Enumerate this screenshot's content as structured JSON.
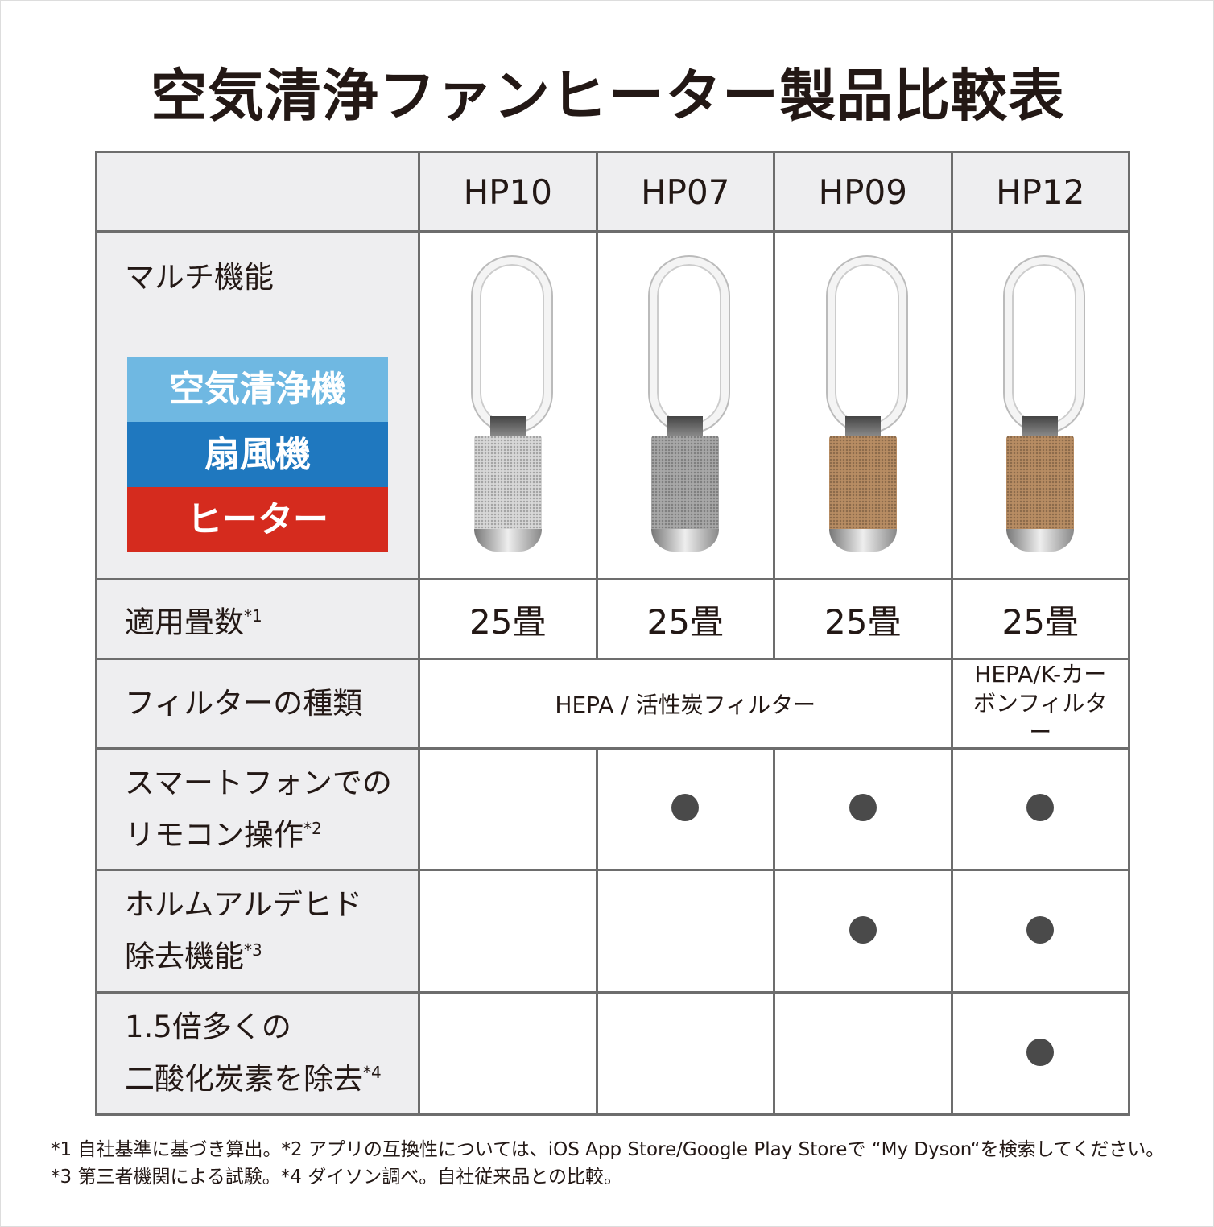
{
  "title": "空気清浄ファンヒーター製品比較表",
  "models": [
    "HP10",
    "HP07",
    "HP09",
    "HP12"
  ],
  "rows": {
    "multi": {
      "label": "マルチ機能",
      "badge": [
        {
          "text": "空気清浄機",
          "color": "#6fb8e2"
        },
        {
          "text": "扇風機",
          "color": "#1f78bf"
        },
        {
          "text": "ヒーター",
          "color": "#d52b1e"
        }
      ],
      "body_colors": [
        "#d8d8d8",
        "#a8a8a8",
        "#b88d63",
        "#b88d63"
      ]
    },
    "area": {
      "label": "適用畳数",
      "note": "*1",
      "values": [
        "25畳",
        "25畳",
        "25畳",
        "25畳"
      ]
    },
    "filter": {
      "label": "フィルターの種類",
      "span_value": "HEPA / 活性炭フィルター",
      "hp12_value": "HEPA/K-カーボンフィルター"
    },
    "smart": {
      "label1": "スマートフォンでの",
      "label2": "リモコン操作",
      "note": "*2",
      "values": [
        false,
        true,
        true,
        true
      ]
    },
    "formaldehyde": {
      "label1": "ホルムアルデヒド",
      "label2": "除去機能",
      "note": "*3",
      "values": [
        false,
        false,
        true,
        true
      ]
    },
    "co2": {
      "label1": "1.5倍多くの",
      "label2": "二酸化炭素を除去",
      "note": "*4",
      "values": [
        false,
        false,
        false,
        true
      ]
    }
  },
  "footnotes": [
    "*1 自社基準に基づき算出。*2 アプリの互換性については、iOS App Store/Google Play Storeで “My Dyson“を検索してください。",
    "*3 第三者機関による試験。*4 ダイソン調べ。自社従来品との比較。"
  ]
}
